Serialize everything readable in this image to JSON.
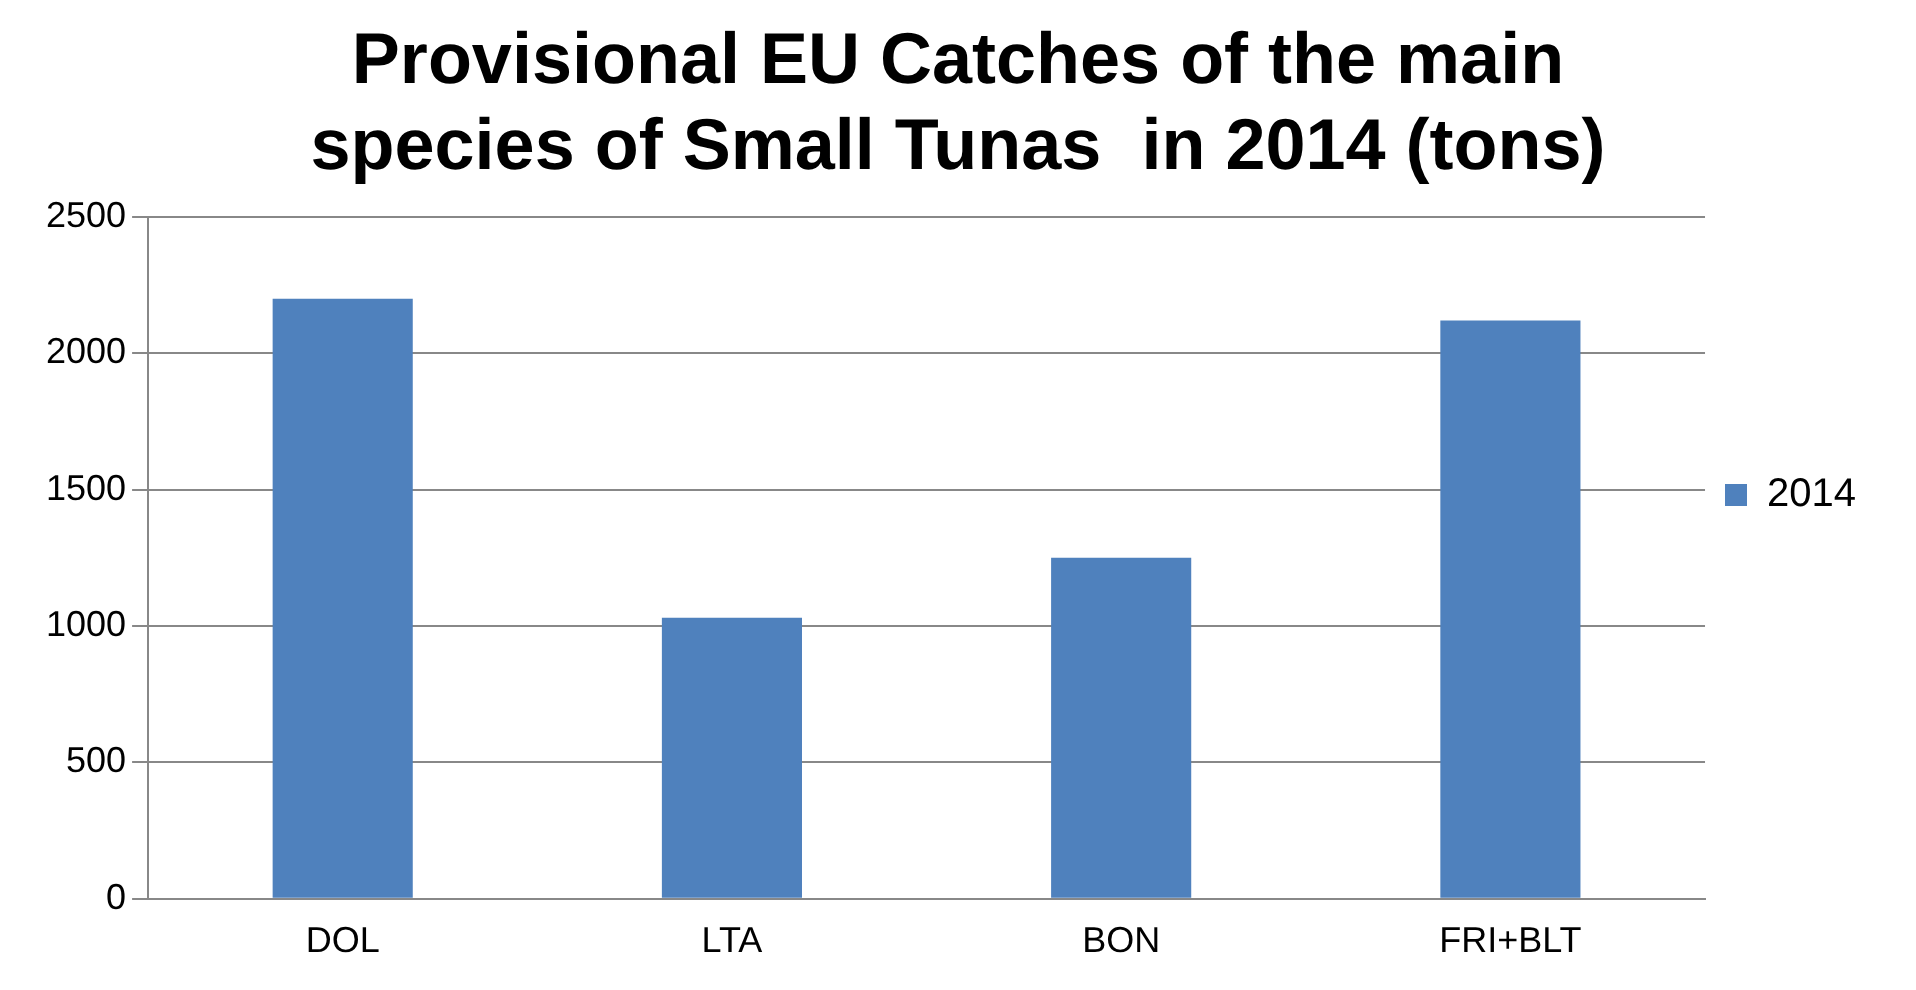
{
  "chart_data": {
    "type": "bar",
    "title": "Provisional EU Catches of the main species of Small Tunas  in 2014 (tons)",
    "categories": [
      "DOL",
      "LTA",
      "BON",
      "FRI+BLT"
    ],
    "series": [
      {
        "name": "2014",
        "color": "#4f81bd",
        "values": [
          2200,
          1030,
          1250,
          2120
        ]
      }
    ],
    "ylim": [
      0,
      2500
    ],
    "yticks": [
      0,
      500,
      1000,
      1500,
      2000,
      2500
    ],
    "grid": "y",
    "legend": "right"
  }
}
